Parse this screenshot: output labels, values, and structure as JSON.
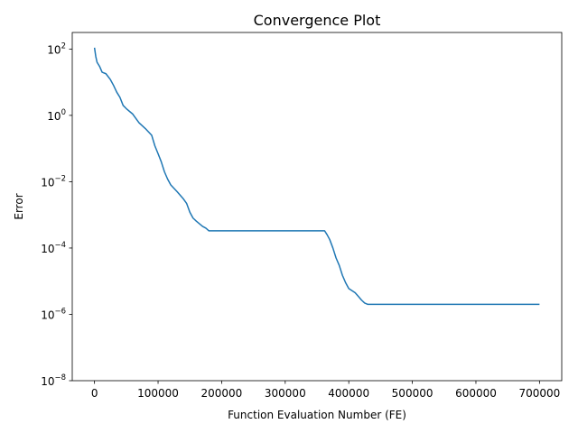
{
  "chart_data": {
    "type": "line",
    "title": "Convergence Plot",
    "xlabel": "Function Evaluation Number (FE)",
    "ylabel": "Error",
    "xlim": [
      -35000,
      735000
    ],
    "ylim": [
      1e-08,
      316
    ],
    "yscale": "log",
    "grid": false,
    "x_ticks": [
      0,
      100000,
      200000,
      300000,
      400000,
      500000,
      600000,
      700000
    ],
    "x_tick_labels": [
      "0",
      "100000",
      "200000",
      "300000",
      "400000",
      "500000",
      "600000",
      "700000"
    ],
    "y_ticks": [
      {
        "value": 100,
        "base": "10",
        "exp": "2"
      },
      {
        "value": 1,
        "base": "10",
        "exp": "0"
      },
      {
        "value": 0.01,
        "base": "10",
        "exp": "−2"
      },
      {
        "value": 0.0001,
        "base": "10",
        "exp": "−4"
      },
      {
        "value": 1e-06,
        "base": "10",
        "exp": "−6"
      },
      {
        "value": 1e-08,
        "base": "10",
        "exp": "−8"
      }
    ],
    "series": [
      {
        "color": "#1f77b4",
        "x": [
          0,
          2000,
          4000,
          8000,
          12000,
          18000,
          25000,
          30000,
          35000,
          40000,
          45000,
          50000,
          60000,
          70000,
          80000,
          90000,
          95000,
          100000,
          105000,
          110000,
          115000,
          120000,
          130000,
          140000,
          145000,
          150000,
          155000,
          160000,
          170000,
          175000,
          180000,
          200000,
          250000,
          300000,
          350000,
          362000,
          366000,
          370000,
          375000,
          380000,
          385000,
          390000,
          395000,
          400000,
          410000,
          415000,
          420000,
          425000,
          430000,
          450000,
          500000,
          600000,
          700000
        ],
        "y": [
          110,
          60,
          40,
          30,
          20,
          18,
          12,
          8,
          5,
          3.5,
          2,
          1.6,
          1.1,
          0.6,
          0.4,
          0.25,
          0.12,
          0.07,
          0.04,
          0.02,
          0.012,
          0.008,
          0.005,
          0.003,
          0.0022,
          0.0012,
          0.0008,
          0.00065,
          0.00045,
          0.0004,
          0.00033,
          0.00033,
          0.00033,
          0.00033,
          0.00033,
          0.00033,
          0.00025,
          0.00018,
          0.0001,
          5e-05,
          3e-05,
          1.5e-05,
          9e-06,
          6e-06,
          4.5e-06,
          3.5e-06,
          2.7e-06,
          2.2e-06,
          2e-06,
          2e-06,
          2e-06,
          2e-06,
          2e-06
        ]
      }
    ]
  }
}
